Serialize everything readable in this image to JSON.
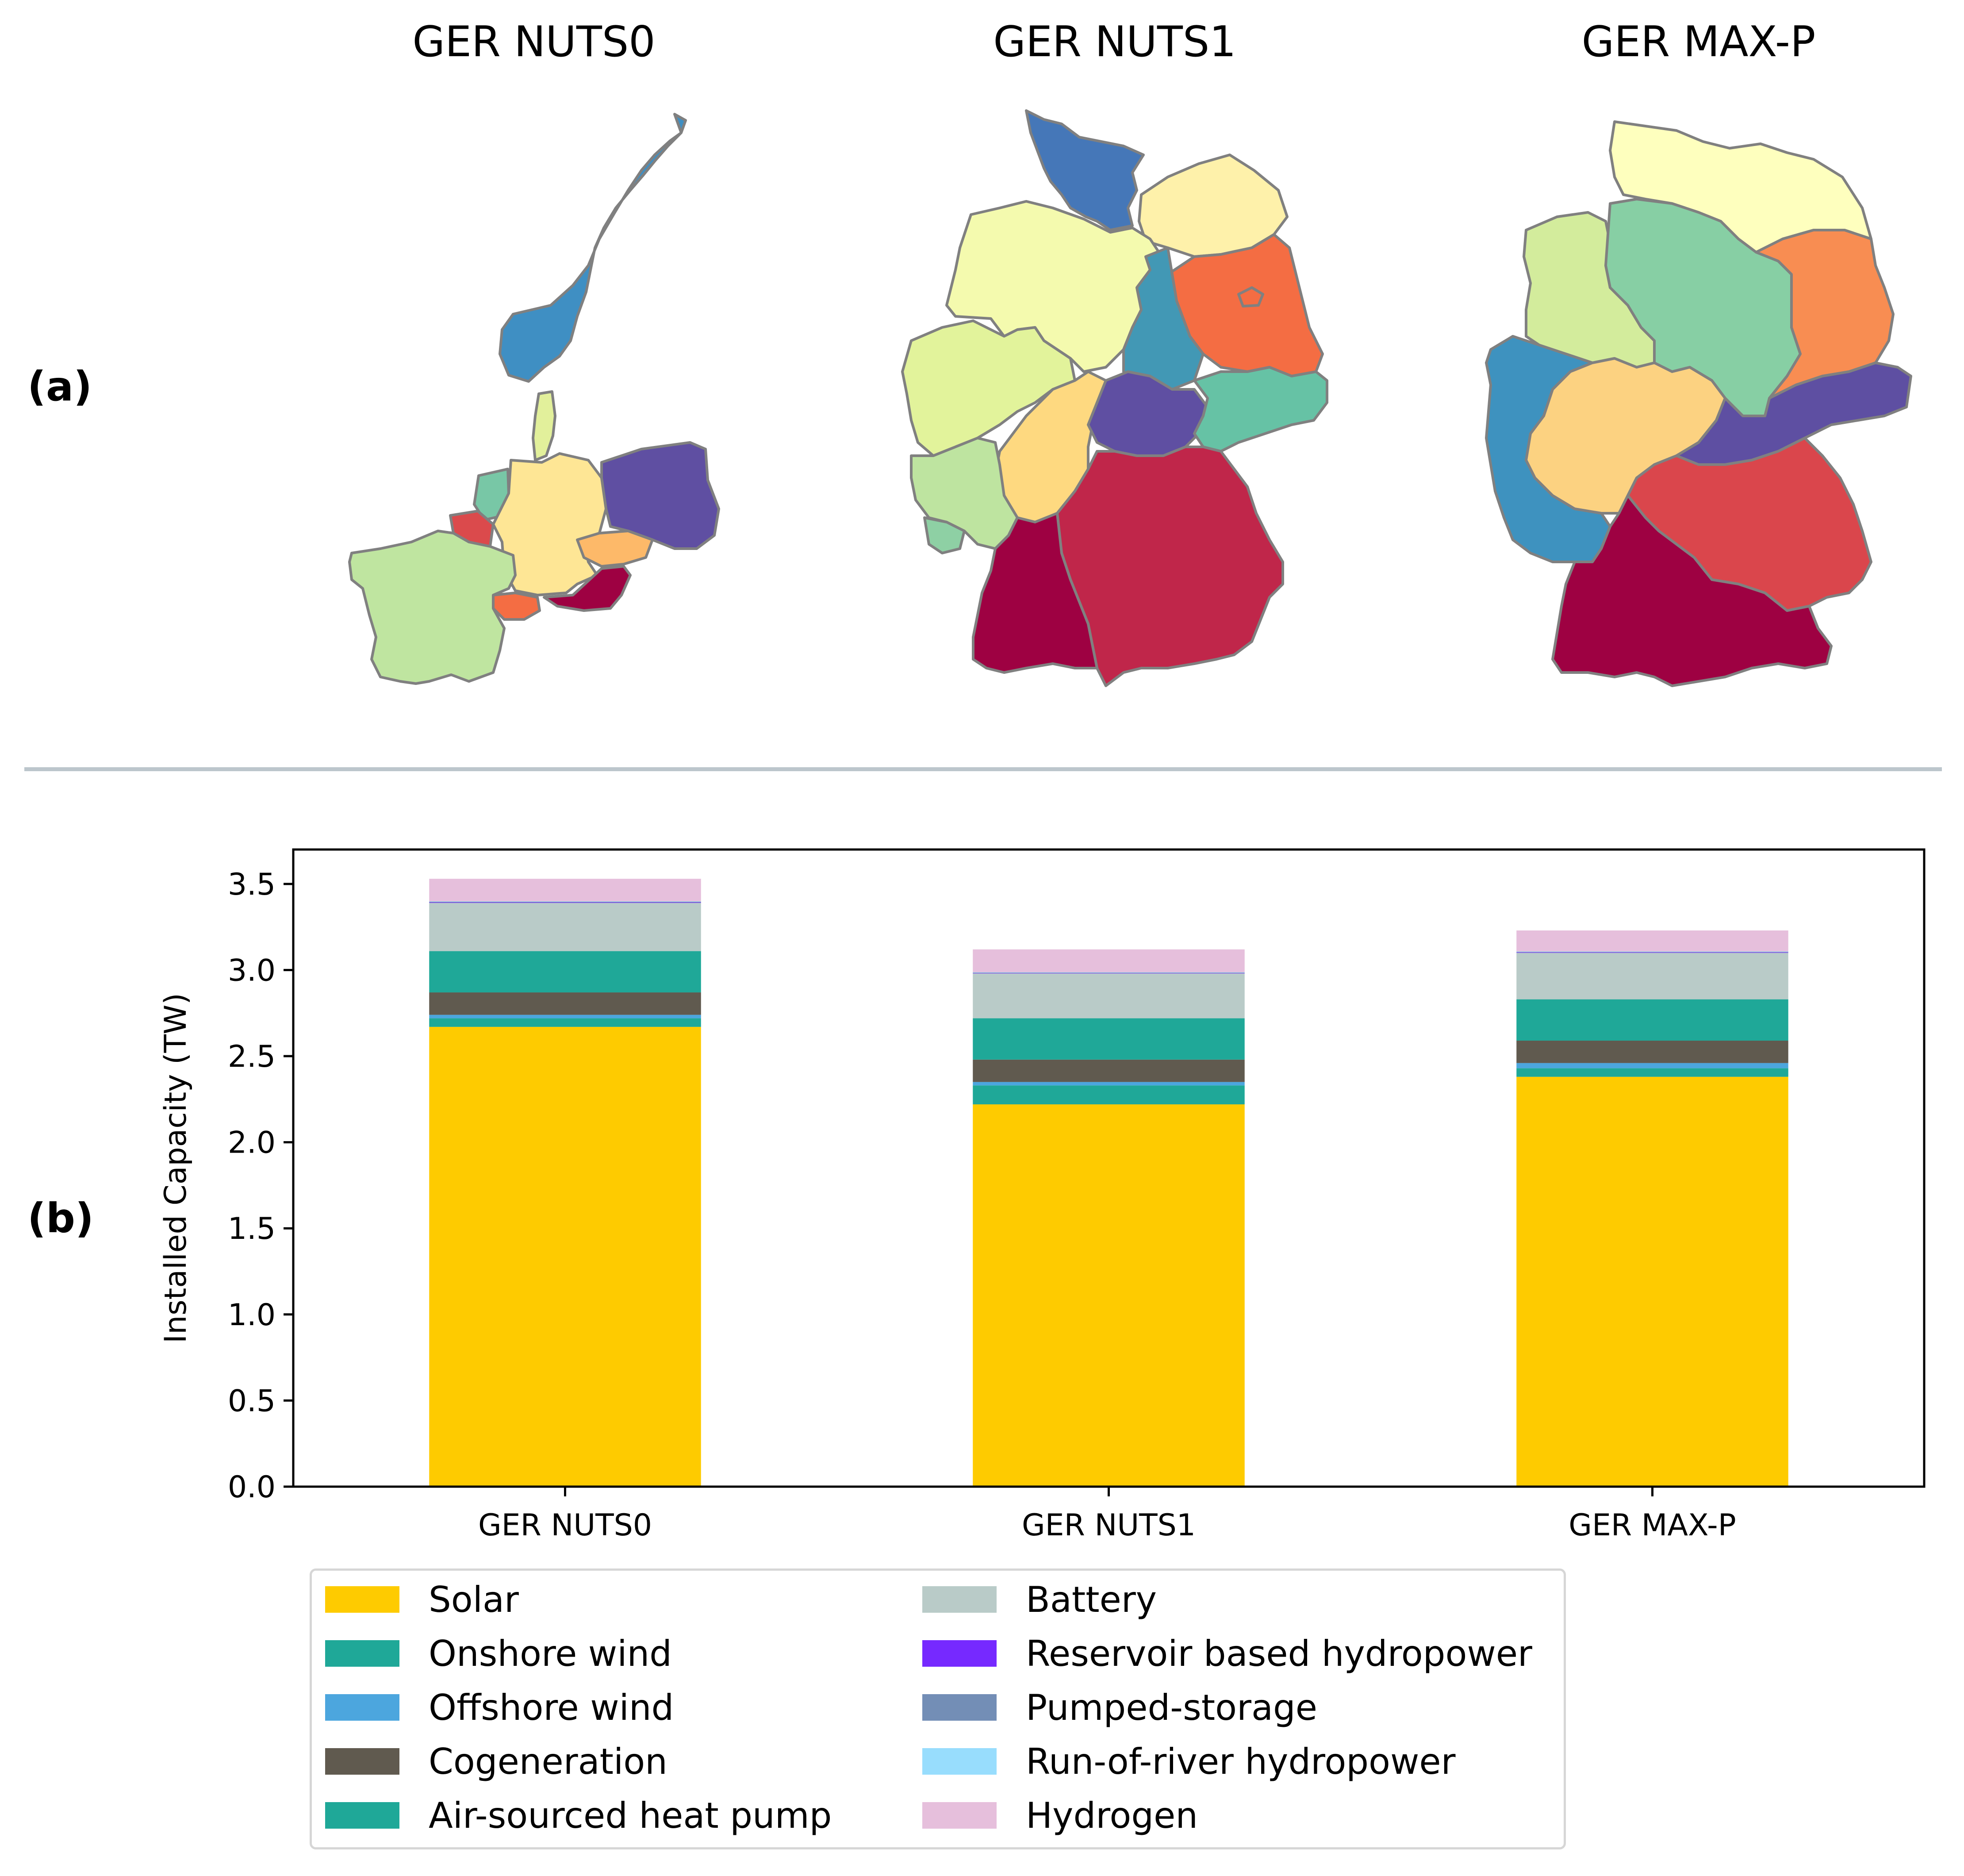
{
  "panel_labels": {
    "a": "(a)",
    "b": "(b)"
  },
  "maps": [
    {
      "title": "GER NUTS0"
    },
    {
      "title": "GER NUTS1"
    },
    {
      "title": "GER MAX-P"
    }
  ],
  "chart_data": {
    "type": "bar",
    "stacked": true,
    "categories": [
      "GER NUTS0",
      "GER NUTS1",
      "GER MAX-P"
    ],
    "xlabel": "",
    "ylabel": "Installed Capacity (TW)",
    "ylim": [
      0,
      3.7
    ],
    "yticks": [
      0.0,
      0.5,
      1.0,
      1.5,
      2.0,
      2.5,
      3.0,
      3.5
    ],
    "ytick_labels": [
      "0.0",
      "0.5",
      "1.0",
      "1.5",
      "2.0",
      "2.5",
      "3.0",
      "3.5"
    ],
    "grid": false,
    "legend_position": "bottom-left, below axes, two columns",
    "series": [
      {
        "name": "Solar",
        "color": "#fecb00",
        "values": [
          2.67,
          2.22,
          2.38
        ]
      },
      {
        "name": "Onshore wind",
        "color": "#1fa898",
        "values": [
          0.05,
          0.11,
          0.05
        ]
      },
      {
        "name": "Offshore wind",
        "color": "#4ca6de",
        "values": [
          0.02,
          0.02,
          0.03
        ]
      },
      {
        "name": "Cogeneration",
        "color": "#605a4f",
        "values": [
          0.13,
          0.13,
          0.13
        ]
      },
      {
        "name": "Air-sourced heat pump",
        "color": "#1fa898",
        "values": [
          0.24,
          0.24,
          0.24
        ]
      },
      {
        "name": "Battery",
        "color": "#b9cbc8",
        "values": [
          0.28,
          0.26,
          0.27
        ]
      },
      {
        "name": "Reservoir based hydropower",
        "color": "#7629ff",
        "values": [
          0.003,
          0.002,
          0.003
        ]
      },
      {
        "name": "Pumped-storage",
        "color": "#738eb6",
        "values": [
          0.004,
          0.003,
          0.003
        ]
      },
      {
        "name": "Run-of-river hydropower",
        "color": "#98ddfd",
        "values": [
          0.002,
          0.002,
          0.002
        ]
      },
      {
        "name": "Hydrogen",
        "color": "#e6bfdc",
        "values": [
          0.131,
          0.133,
          0.122
        ]
      }
    ]
  }
}
